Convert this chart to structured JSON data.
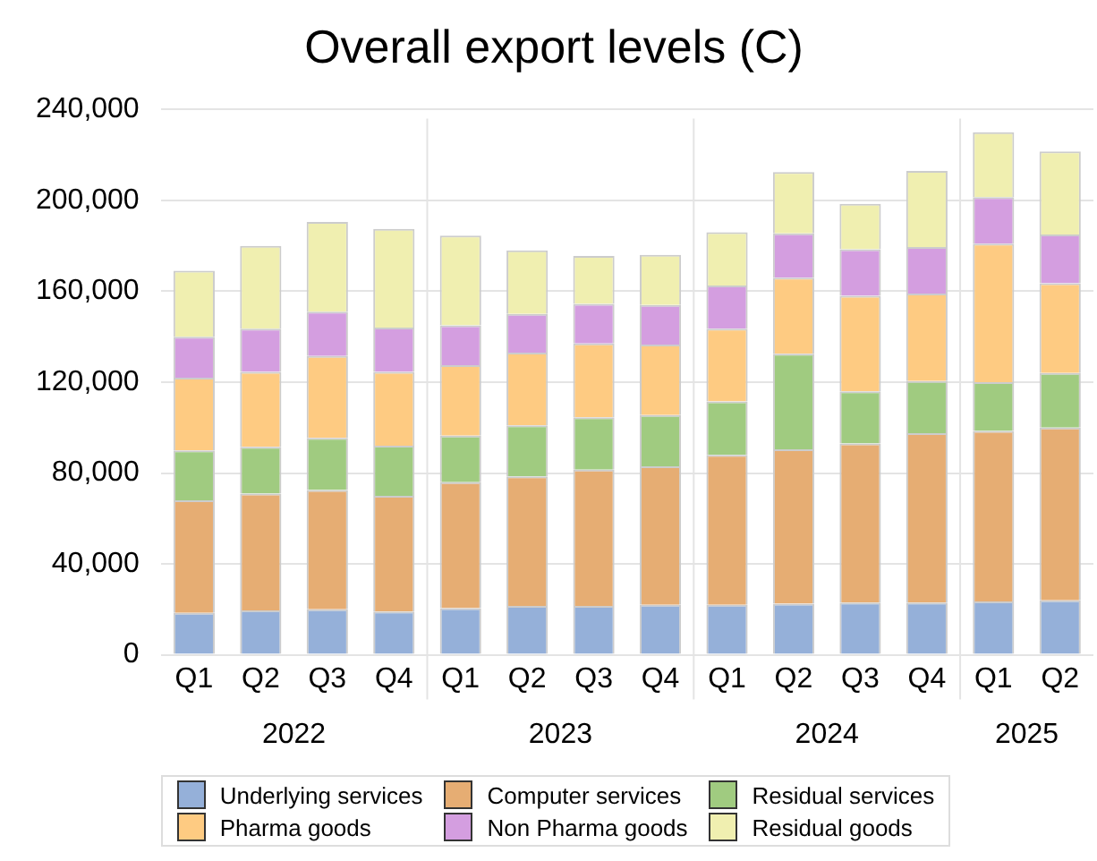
{
  "chart_data": {
    "type": "bar",
    "title": "Overall export levels (C)",
    "stacked": true,
    "grid": "y",
    "legend": "bottom",
    "categories": [
      "Q1",
      "Q2",
      "Q3",
      "Q4",
      "Q1",
      "Q2",
      "Q3",
      "Q4",
      "Q1",
      "Q2",
      "Q3",
      "Q4",
      "Q1",
      "Q2"
    ],
    "annotations": [
      "2022",
      "2023",
      "2024",
      "2025"
    ],
    "ylim": [
      0,
      240000
    ],
    "yticks": [
      {
        "value": 0,
        "label": "0"
      },
      {
        "value": 40000,
        "label": "40,000"
      },
      {
        "value": 80000,
        "label": "80,000"
      },
      {
        "value": 120000,
        "label": "120,000"
      },
      {
        "value": 160000,
        "label": "160,000"
      },
      {
        "value": 200000,
        "label": "200,000"
      },
      {
        "value": 240000,
        "label": "240,000"
      }
    ],
    "series": [
      {
        "name": "Underlying services",
        "color": "#95b0d9",
        "values": [
          18500,
          19500,
          20000,
          19000,
          20500,
          21500,
          21500,
          22000,
          22000,
          22500,
          23000,
          23000,
          23500,
          24000
        ]
      },
      {
        "name": "Computer services",
        "color": "#e6ad73",
        "values": [
          49500,
          51500,
          52500,
          51000,
          55500,
          57000,
          60000,
          61000,
          66000,
          68000,
          70000,
          74500,
          75000,
          76000
        ]
      },
      {
        "name": "Residual services",
        "color": "#a0cb80",
        "values": [
          22000,
          20500,
          23000,
          22000,
          20500,
          22500,
          23000,
          22500,
          23500,
          42000,
          23000,
          23000,
          21500,
          24000
        ]
      },
      {
        "name": "Pharma goods",
        "color": "#fecb82",
        "values": [
          32000,
          33000,
          36000,
          32500,
          31000,
          32000,
          32500,
          31000,
          32000,
          33500,
          42000,
          38500,
          61000,
          39500
        ]
      },
      {
        "name": "Non Pharma goods",
        "color": "#d49ee0",
        "values": [
          18000,
          19000,
          19500,
          19500,
          17500,
          17000,
          17500,
          17500,
          19000,
          19500,
          20500,
          20500,
          20500,
          21500
        ]
      },
      {
        "name": "Residual goods",
        "color": "#f0efb0",
        "values": [
          29000,
          36500,
          39500,
          43500,
          39500,
          28000,
          21000,
          22000,
          23500,
          27000,
          20000,
          33500,
          28500,
          36500
        ]
      }
    ]
  }
}
